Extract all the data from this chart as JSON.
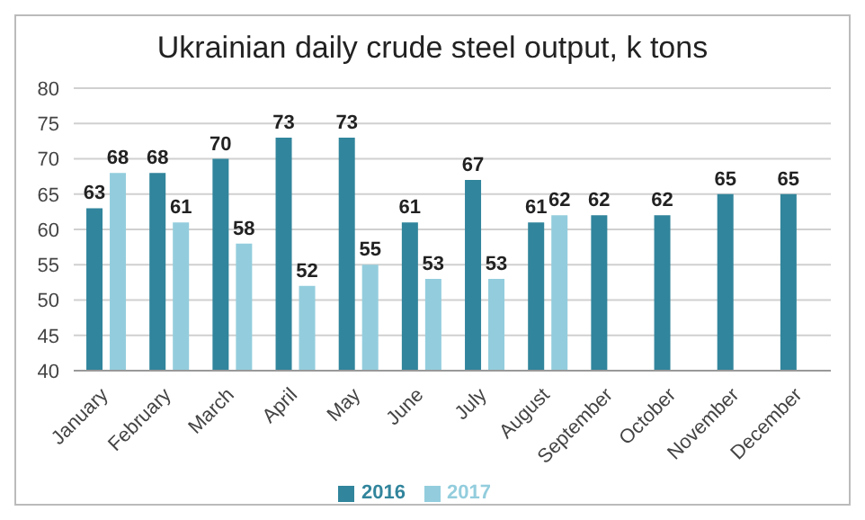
{
  "chart_data": {
    "type": "bar",
    "title": "Ukrainian daily crude steel output, k tons",
    "categories": [
      "January",
      "February",
      "March",
      "April",
      "May",
      "June",
      "July",
      "August",
      "September",
      "October",
      "November",
      "December"
    ],
    "series": [
      {
        "name": "2016",
        "color": "#31859c",
        "values": [
          63,
          68,
          70,
          73,
          73,
          61,
          67,
          61,
          62,
          62,
          65,
          65
        ]
      },
      {
        "name": "2017",
        "color": "#93cddd",
        "values": [
          68,
          61,
          58,
          52,
          55,
          53,
          53,
          62,
          null,
          null,
          null,
          null
        ]
      }
    ],
    "ylim": [
      40,
      80
    ],
    "yticks": [
      40,
      45,
      50,
      55,
      60,
      65,
      70,
      75,
      80
    ],
    "grid": "y",
    "legend": "bottom",
    "data_labels": true
  }
}
